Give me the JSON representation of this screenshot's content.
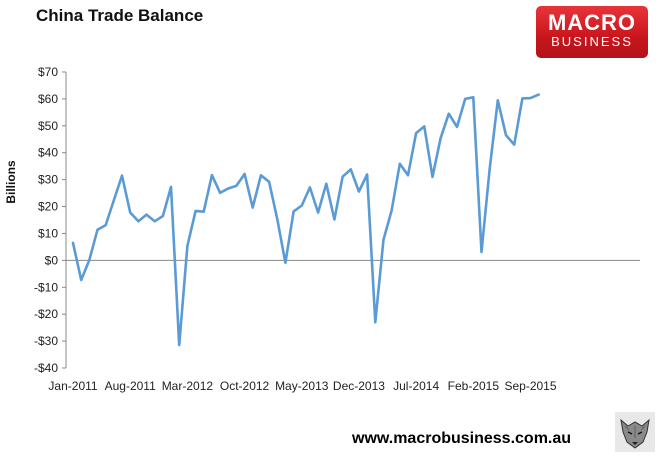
{
  "header": {
    "title": "China Trade Balance"
  },
  "logo": {
    "line1": "MACRO",
    "line2": "BUSINESS",
    "color": "#d01f26"
  },
  "footer": {
    "url": "www.macrobusiness.com.au"
  },
  "chart_data": {
    "type": "line",
    "title": "China Trade Balance",
    "ylabel": "Billions",
    "xlabel": "",
    "ylim": [
      -40,
      70
    ],
    "yticks": [
      -40,
      -30,
      -20,
      -10,
      0,
      10,
      20,
      30,
      40,
      50,
      60,
      70
    ],
    "ytick_labels": [
      "-$40",
      "-$30",
      "-$20",
      "-$10",
      "$0",
      "$10",
      "$20",
      "$30",
      "$40",
      "$50",
      "$60",
      "$70"
    ],
    "xtick_labels": [
      "Jan-2011",
      "Aug-2011",
      "Mar-2012",
      "Oct-2012",
      "May-2013",
      "Dec-2013",
      "Jul-2014",
      "Feb-2015",
      "Sep-2015"
    ],
    "grid": false,
    "line_color": "#5b9bd5",
    "x": [
      "Jan-2011",
      "Feb-2011",
      "Mar-2011",
      "Apr-2011",
      "May-2011",
      "Jun-2011",
      "Jul-2011",
      "Aug-2011",
      "Sep-2011",
      "Oct-2011",
      "Nov-2011",
      "Dec-2011",
      "Jan-2012",
      "Feb-2012",
      "Mar-2012",
      "Apr-2012",
      "May-2012",
      "Jun-2012",
      "Jul-2012",
      "Aug-2012",
      "Sep-2012",
      "Oct-2012",
      "Nov-2012",
      "Dec-2012",
      "Jan-2013",
      "Feb-2013",
      "Mar-2013",
      "Apr-2013",
      "May-2013",
      "Jun-2013",
      "Jul-2013",
      "Aug-2013",
      "Sep-2013",
      "Oct-2013",
      "Nov-2013",
      "Dec-2013",
      "Jan-2014",
      "Feb-2014",
      "Mar-2014",
      "Apr-2014",
      "May-2014",
      "Jun-2014",
      "Jul-2014",
      "Aug-2014",
      "Sep-2014",
      "Oct-2014",
      "Nov-2014",
      "Dec-2014",
      "Jan-2015",
      "Feb-2015",
      "Mar-2015",
      "Apr-2015",
      "May-2015",
      "Jun-2015",
      "Jul-2015",
      "Aug-2015",
      "Sep-2015",
      "Oct-2015"
    ],
    "series": [
      {
        "values": [
          6.5,
          -7.3,
          0.1,
          11.4,
          13.1,
          22.3,
          31.5,
          17.8,
          14.5,
          17.0,
          14.5,
          16.5,
          27.3,
          -31.5,
          5.4,
          18.4,
          18.1,
          31.7,
          25.1,
          26.7,
          27.7,
          32.1,
          19.6,
          31.6,
          29.2,
          15.3,
          -0.9,
          18.2,
          20.4,
          27.1,
          17.8,
          28.5,
          15.2,
          31.1,
          33.8,
          25.6,
          31.9,
          -23.0,
          7.7,
          18.5,
          35.9,
          31.6,
          47.3,
          49.8,
          31.0,
          45.4,
          54.5,
          49.6,
          60.0,
          60.6,
          3.1,
          34.1,
          59.5,
          46.5,
          43.0,
          60.2,
          60.3,
          61.6
        ]
      }
    ]
  }
}
